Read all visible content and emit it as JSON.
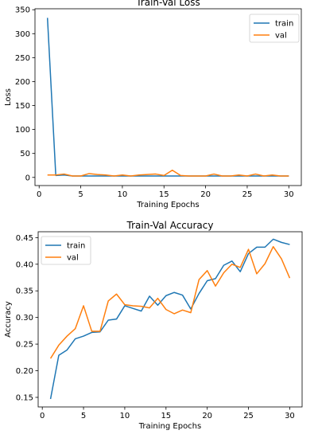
{
  "colors": {
    "train": "#1f77b4",
    "val": "#ff7f0e"
  },
  "chart_data": [
    {
      "type": "line",
      "title": "Train-Val Loss",
      "xlabel": "Training Epochs",
      "ylabel": "Loss",
      "xlim": [
        -0.5,
        31.5
      ],
      "ylim": [
        -17,
        352
      ],
      "xticks": [
        0,
        5,
        10,
        15,
        20,
        25,
        30
      ],
      "yticks": [
        0,
        50,
        100,
        150,
        200,
        250,
        300,
        350
      ],
      "grid": false,
      "legend": "upper right",
      "x": [
        1,
        2,
        3,
        4,
        5,
        6,
        7,
        8,
        9,
        10,
        11,
        12,
        13,
        14,
        15,
        16,
        17,
        18,
        19,
        20,
        21,
        22,
        23,
        24,
        25,
        26,
        27,
        28,
        29,
        30
      ],
      "series": [
        {
          "name": "train",
          "color_key": "train",
          "values": [
            333,
            4,
            5,
            3,
            3,
            3,
            3,
            3,
            3,
            3,
            3,
            3,
            3,
            3,
            3,
            3,
            3,
            3,
            3,
            3,
            3,
            3,
            3,
            3,
            3,
            3,
            3,
            3,
            3,
            3
          ]
        },
        {
          "name": "val",
          "color_key": "val",
          "values": [
            5,
            5,
            7,
            3,
            3,
            8,
            6,
            5,
            3,
            5,
            3,
            5,
            6,
            7,
            4,
            15,
            4,
            3,
            3,
            3,
            7,
            3,
            3,
            5,
            3,
            7,
            3,
            5,
            3,
            3
          ]
        }
      ]
    },
    {
      "type": "line",
      "title": "Train-Val Accuracy",
      "xlabel": "Training Epochs",
      "ylabel": "Accuracy",
      "xlim": [
        -0.5,
        31.5
      ],
      "ylim": [
        0.132,
        0.461
      ],
      "xticks": [
        0,
        5,
        10,
        15,
        20,
        25,
        30
      ],
      "yticks": [
        0.15,
        0.2,
        0.25,
        0.3,
        0.35,
        0.4,
        0.45
      ],
      "ytick_format": 2,
      "grid": false,
      "legend": "upper left",
      "x": [
        1,
        2,
        3,
        4,
        5,
        6,
        7,
        8,
        9,
        10,
        11,
        12,
        13,
        14,
        15,
        16,
        17,
        18,
        19,
        20,
        21,
        22,
        23,
        24,
        25,
        26,
        27,
        28,
        29,
        30
      ],
      "series": [
        {
          "name": "train",
          "color_key": "train",
          "values": [
            0.147,
            0.229,
            0.239,
            0.26,
            0.265,
            0.272,
            0.273,
            0.295,
            0.297,
            0.322,
            0.317,
            0.312,
            0.34,
            0.323,
            0.341,
            0.347,
            0.342,
            0.316,
            0.345,
            0.369,
            0.373,
            0.398,
            0.406,
            0.386,
            0.42,
            0.432,
            0.432,
            0.447,
            0.441,
            0.437
          ]
        },
        {
          "name": "val",
          "color_key": "val",
          "values": [
            0.223,
            0.248,
            0.265,
            0.279,
            0.322,
            0.274,
            0.274,
            0.331,
            0.344,
            0.324,
            0.322,
            0.321,
            0.318,
            0.336,
            0.315,
            0.307,
            0.314,
            0.309,
            0.371,
            0.388,
            0.359,
            0.384,
            0.4,
            0.394,
            0.428,
            0.382,
            0.401,
            0.433,
            0.41,
            0.374
          ]
        }
      ]
    }
  ]
}
